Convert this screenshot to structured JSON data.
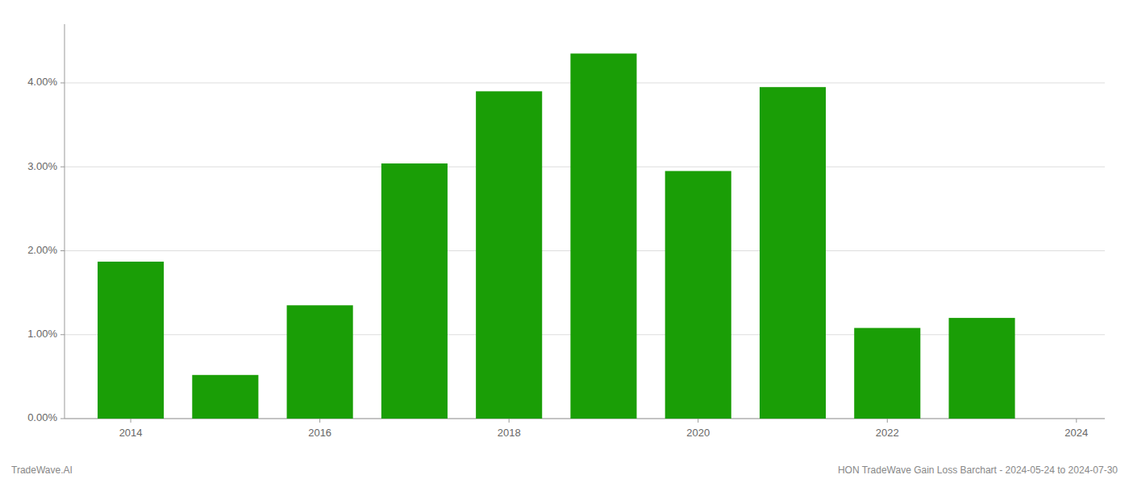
{
  "chart_data": {
    "type": "bar",
    "x": [
      2014,
      2015,
      2016,
      2017,
      2018,
      2019,
      2020,
      2021,
      2022,
      2023
    ],
    "values": [
      1.87,
      0.52,
      1.35,
      3.04,
      3.9,
      4.35,
      2.95,
      3.95,
      1.08,
      1.2
    ],
    "color": "#1a9e06",
    "xlim": [
      2013.3,
      2024.3
    ],
    "xticks": [
      2014,
      2016,
      2018,
      2020,
      2022,
      2024
    ],
    "ylim": [
      0,
      4.7
    ],
    "yticks": [
      {
        "value": 0.0,
        "label": "0.00%"
      },
      {
        "value": 1.0,
        "label": "1.00%"
      },
      {
        "value": 2.0,
        "label": "2.00%"
      },
      {
        "value": 3.0,
        "label": "3.00%"
      },
      {
        "value": 4.0,
        "label": "4.00%"
      }
    ],
    "grid": true,
    "annotations": [
      "TradeWave.AI",
      "HON TradeWave Gain Loss Barchart - 2024-05-24 to 2024-07-30"
    ]
  }
}
